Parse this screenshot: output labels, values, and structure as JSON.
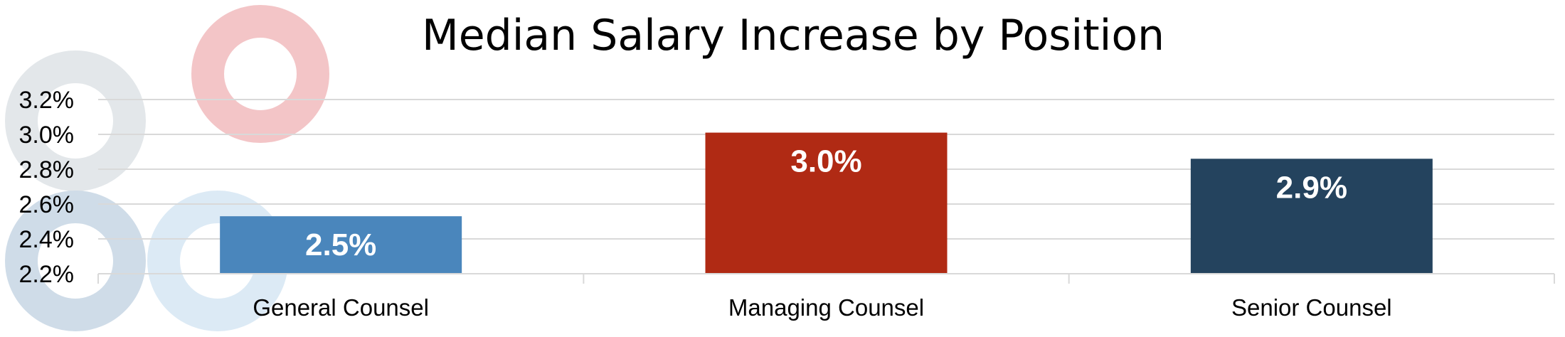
{
  "chart_data": {
    "type": "bar",
    "title": "Median Salary Increase by Position",
    "xlabel": "",
    "ylabel": "",
    "categories": [
      "General Counsel",
      "Managing Counsel",
      "Senior Counsel"
    ],
    "values": [
      2.53,
      3.01,
      2.86
    ],
    "data_labels": [
      "2.5%",
      "3.0%",
      "2.9%"
    ],
    "colors": [
      "#4A86BC",
      "#B02A14",
      "#24435E"
    ],
    "ylim": [
      2.2,
      3.2
    ],
    "yticks": [
      2.2,
      2.4,
      2.6,
      2.8,
      3.0,
      3.2
    ],
    "ytick_labels": [
      "2.2%",
      "2.4%",
      "2.6%",
      "2.8%",
      "3.0%",
      "3.2%"
    ],
    "grid": true,
    "legend": "none"
  },
  "decorations": [
    {
      "name": "donut-ring-gray-top",
      "color": "#E3E7EA"
    },
    {
      "name": "donut-ring-pink",
      "color": "#F3C5C7"
    },
    {
      "name": "donut-ring-blue-bottom",
      "color": "#CFDCE8"
    },
    {
      "name": "donut-ring-lightblue",
      "color": "#DCEAF5"
    }
  ]
}
